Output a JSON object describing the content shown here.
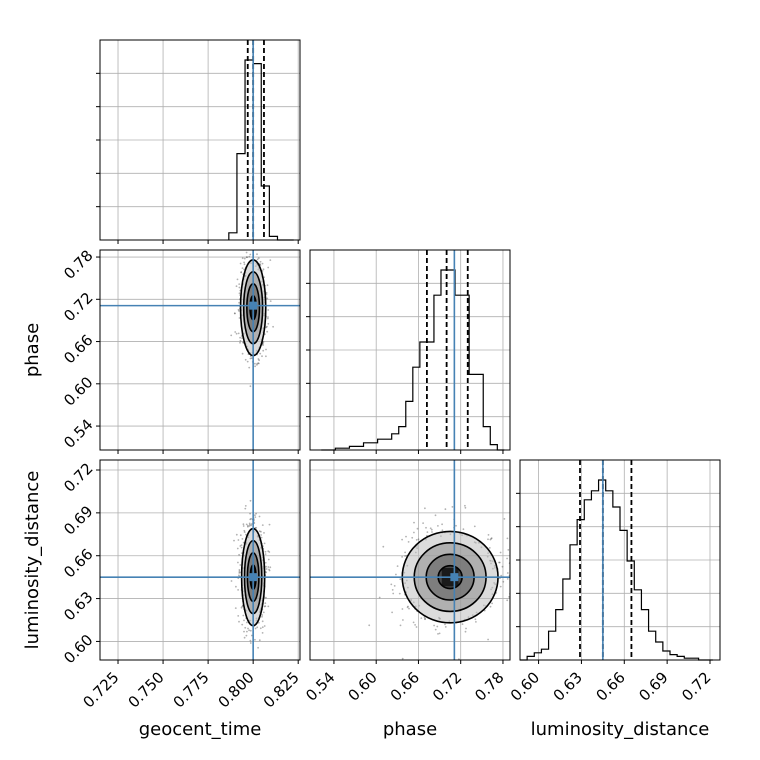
{
  "colors": {
    "truth": "#4682b4",
    "hist": "#000000",
    "grid": "#b0b0b0",
    "scatter": "#555555",
    "fill_levels": [
      "#e6e6e6",
      "#bfbfbf",
      "#8c8c8c",
      "#555555",
      "#1a1a1a"
    ]
  },
  "chart_data": {
    "type": "corner",
    "parameters": [
      "geocent_time",
      "phase",
      "luminosity_distance"
    ],
    "truths": {
      "geocent_time": 0.8,
      "phase": 0.711,
      "luminosity_distance": 0.645
    },
    "ranges": {
      "geocent_time": [
        0.715,
        0.826
      ],
      "phase": [
        0.506,
        0.79
      ],
      "luminosity_distance": [
        0.587,
        0.727
      ]
    },
    "ticks": {
      "geocent_time": [
        "0.725",
        "0.750",
        "0.775",
        "0.800",
        "0.825"
      ],
      "phase": [
        "0.54",
        "0.60",
        "0.66",
        "0.72",
        "0.78"
      ],
      "luminosity_distance": [
        "0.60",
        "0.63",
        "0.66",
        "0.69",
        "0.72"
      ]
    },
    "quantiles": {
      "geocent_time": [
        0.797,
        0.8,
        0.806
      ],
      "phase": [
        0.672,
        0.7,
        0.73
      ],
      "luminosity_distance": [
        0.629,
        0.645,
        0.665
      ]
    },
    "marginals": {
      "geocent_time": {
        "edges": [
          0.7865,
          0.791,
          0.7955,
          0.8,
          0.8045,
          0.809,
          0.8135,
          0.818,
          0.8225
        ],
        "counts": [
          0.04,
          0.48,
          1.0,
          0.98,
          0.3,
          0.02,
          0.0,
          0.0
        ]
      },
      "phase": {
        "edges": [
          0.522,
          0.532,
          0.542,
          0.552,
          0.562,
          0.572,
          0.582,
          0.592,
          0.602,
          0.612,
          0.622,
          0.632,
          0.642,
          0.652,
          0.662,
          0.672,
          0.682,
          0.692,
          0.702,
          0.712,
          0.722,
          0.732,
          0.742,
          0.752,
          0.762,
          0.772,
          0.782
        ],
        "counts": [
          0.0,
          0.0,
          0.01,
          0.01,
          0.02,
          0.02,
          0.04,
          0.04,
          0.06,
          0.06,
          0.09,
          0.13,
          0.27,
          0.46,
          0.6,
          0.6,
          0.86,
          1.0,
          1.0,
          0.86,
          0.86,
          0.42,
          0.42,
          0.13,
          0.03,
          0.0
        ]
      },
      "luminosity_distance": {
        "edges": [
          0.587,
          0.592,
          0.597,
          0.602,
          0.607,
          0.612,
          0.617,
          0.622,
          0.627,
          0.632,
          0.637,
          0.642,
          0.647,
          0.652,
          0.657,
          0.662,
          0.667,
          0.672,
          0.677,
          0.682,
          0.687,
          0.692,
          0.697,
          0.702,
          0.707,
          0.712,
          0.717,
          0.722
        ],
        "counts": [
          0.0,
          0.02,
          0.04,
          0.06,
          0.16,
          0.28,
          0.45,
          0.64,
          0.78,
          0.89,
          0.94,
          1.0,
          0.94,
          0.85,
          0.72,
          0.55,
          0.39,
          0.28,
          0.16,
          0.1,
          0.05,
          0.03,
          0.02,
          0.01,
          0.01,
          0.0,
          0.0
        ]
      }
    },
    "joint": [
      {
        "x": "geocent_time",
        "y": "phase",
        "mean": [
          0.8,
          0.708
        ],
        "sd": [
          0.0035,
          0.034
        ]
      },
      {
        "x": "geocent_time",
        "y": "luminosity_distance",
        "mean": [
          0.8,
          0.645
        ],
        "sd": [
          0.0032,
          0.017
        ]
      },
      {
        "x": "phase",
        "y": "luminosity_distance",
        "mean": [
          0.705,
          0.645
        ],
        "sd": [
          0.034,
          0.016
        ]
      }
    ],
    "contour_sigmas": [
      0.5,
      1.0,
      1.5,
      2.0
    ],
    "grid": true,
    "legend": "none"
  }
}
